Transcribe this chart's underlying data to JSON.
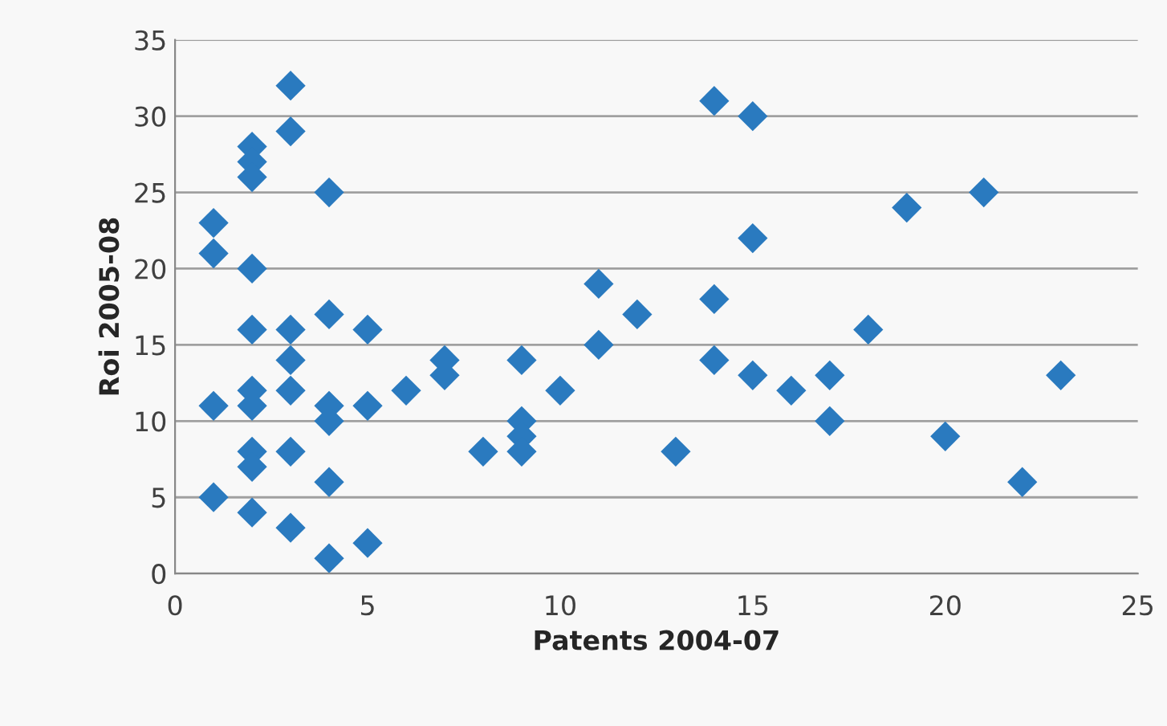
{
  "chart_data": {
    "type": "scatter",
    "xlabel": "Patents 2004-07",
    "ylabel": "Roi 2005-08",
    "xlim": [
      0,
      25
    ],
    "xticks": [
      0,
      5,
      10,
      15,
      20,
      25
    ],
    "ylim": [
      0,
      35
    ],
    "yticks": [
      0,
      5,
      10,
      15,
      20,
      25,
      30,
      35
    ],
    "grid": "y",
    "marker": "diamond",
    "series": [
      {
        "color": "#2a7abf",
        "x": [
          1,
          1,
          1,
          1,
          2,
          2,
          2,
          2,
          2,
          2,
          2,
          2,
          2,
          2,
          3,
          3,
          3,
          3,
          3,
          3,
          3,
          4,
          4,
          4,
          4,
          4,
          4,
          5,
          5,
          5,
          6,
          7,
          7,
          8,
          9,
          9,
          9,
          9,
          10,
          11,
          11,
          12,
          13,
          14,
          14,
          14,
          15,
          15,
          15,
          16,
          17,
          17,
          18,
          19,
          20,
          21,
          22,
          23
        ],
        "values": [
          23,
          21,
          11,
          5,
          28,
          27,
          26,
          20,
          16,
          12,
          11,
          8,
          7,
          4,
          32,
          29,
          16,
          14,
          12,
          8,
          3,
          25,
          17,
          11,
          10,
          6,
          1,
          16,
          11,
          2,
          12,
          14,
          13,
          8,
          14,
          10,
          9,
          8,
          12,
          19,
          15,
          17,
          8,
          31,
          18,
          14,
          30,
          22,
          13,
          12,
          13,
          10,
          16,
          24,
          9,
          25,
          6,
          13
        ]
      }
    ]
  }
}
